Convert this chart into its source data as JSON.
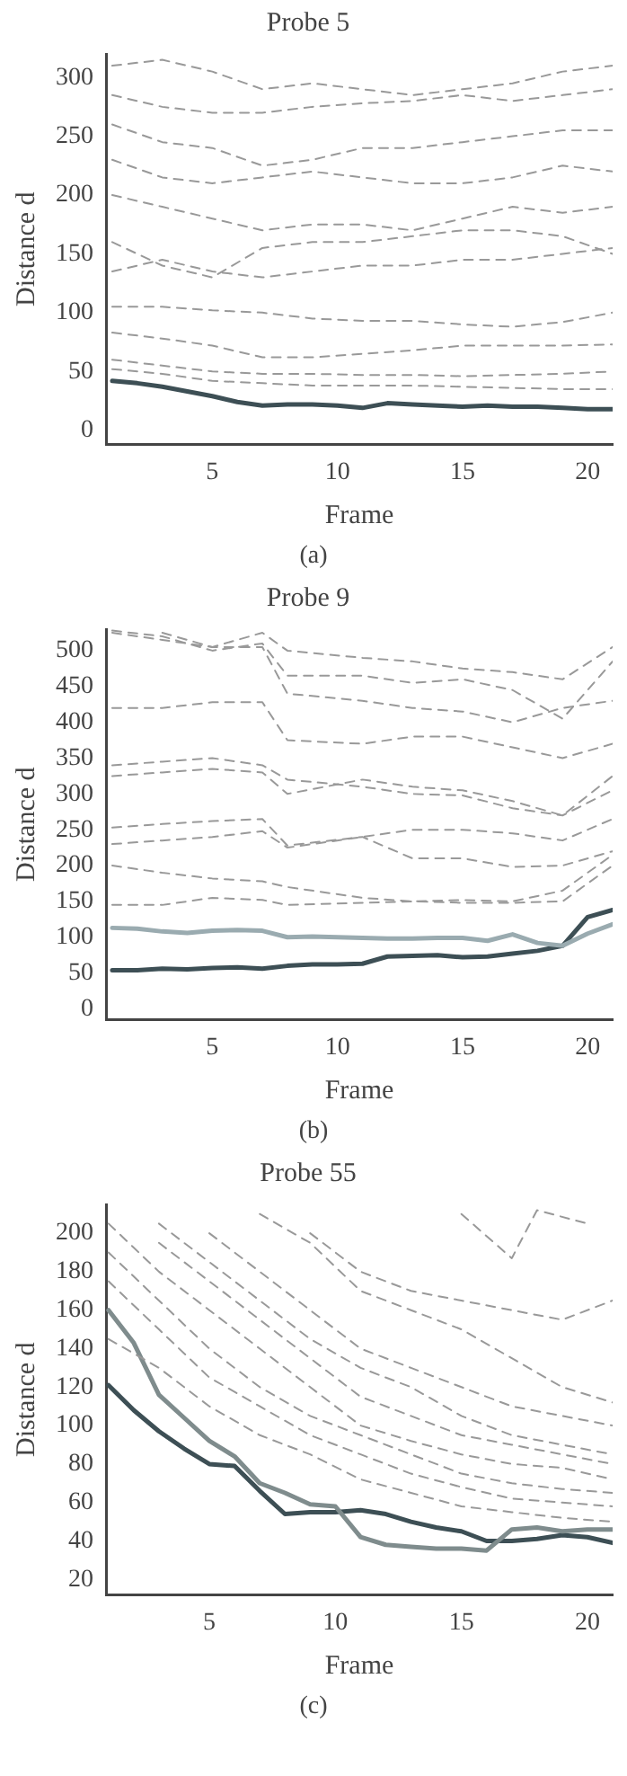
{
  "chart_data": [
    {
      "type": "line",
      "title": "Probe 5",
      "xlabel": "Frame",
      "ylabel": "Distance d",
      "annotations": [
        "(a)"
      ],
      "xlim": [
        0.75,
        21
      ],
      "xticks": [
        5,
        10,
        15,
        20
      ],
      "ylim": [
        -12,
        320
      ],
      "yticks": [
        0,
        50,
        100,
        150,
        200,
        250,
        300
      ],
      "grid": false,
      "legend": false,
      "marker": "none",
      "series": [
        {
          "color": "#999999",
          "line_style": "dashed",
          "x": [
            1,
            3,
            5,
            7,
            9,
            11,
            13,
            15,
            17,
            19,
            21
          ],
          "values": [
            52,
            48,
            42,
            40,
            38,
            38,
            38,
            37,
            36,
            35,
            35
          ]
        },
        {
          "color": "#999999",
          "line_style": "dashed",
          "x": [
            1,
            3,
            5,
            7,
            9,
            11,
            13,
            15,
            17,
            19,
            21
          ],
          "values": [
            60,
            55,
            50,
            48,
            48,
            47,
            47,
            46,
            47,
            48,
            50
          ]
        },
        {
          "color": "#999999",
          "line_style": "dashed",
          "x": [
            1,
            3,
            5,
            7,
            9,
            11,
            13,
            15,
            17,
            19,
            21
          ],
          "values": [
            83,
            78,
            72,
            62,
            62,
            65,
            68,
            72,
            72,
            72,
            73
          ]
        },
        {
          "color": "#999999",
          "line_style": "dashed",
          "x": [
            1,
            3,
            5,
            7,
            9,
            11,
            13,
            15,
            17,
            19,
            21
          ],
          "values": [
            105,
            105,
            102,
            100,
            95,
            93,
            93,
            90,
            88,
            92,
            100
          ]
        },
        {
          "color": "#999999",
          "line_style": "dashed",
          "x": [
            1,
            3,
            5,
            7,
            9,
            11,
            13,
            15,
            17,
            19,
            21
          ],
          "values": [
            135,
            145,
            135,
            130,
            135,
            140,
            140,
            145,
            145,
            150,
            155
          ]
        },
        {
          "color": "#999999",
          "line_style": "dashed",
          "x": [
            1,
            3,
            5,
            7,
            9,
            11,
            13,
            15,
            17,
            19,
            21
          ],
          "values": [
            160,
            140,
            130,
            155,
            160,
            160,
            165,
            170,
            170,
            165,
            150
          ]
        },
        {
          "color": "#999999",
          "line_style": "dashed",
          "x": [
            1,
            3,
            5,
            7,
            9,
            11,
            13,
            15,
            17,
            19,
            21
          ],
          "values": [
            200,
            190,
            180,
            170,
            175,
            175,
            170,
            180,
            190,
            185,
            190
          ]
        },
        {
          "color": "#999999",
          "line_style": "dashed",
          "x": [
            1,
            3,
            5,
            7,
            9,
            11,
            13,
            15,
            17,
            19,
            21
          ],
          "values": [
            230,
            215,
            210,
            215,
            220,
            215,
            210,
            210,
            215,
            225,
            220
          ]
        },
        {
          "color": "#999999",
          "line_style": "dashed",
          "x": [
            1,
            3,
            5,
            7,
            9,
            11,
            13,
            15,
            17,
            19,
            21
          ],
          "values": [
            260,
            245,
            240,
            225,
            230,
            240,
            240,
            245,
            250,
            255,
            255
          ]
        },
        {
          "color": "#999999",
          "line_style": "dashed",
          "x": [
            1,
            3,
            5,
            7,
            9,
            11,
            13,
            15,
            17,
            19,
            21
          ],
          "values": [
            285,
            275,
            270,
            270,
            275,
            278,
            280,
            285,
            280,
            285,
            290
          ]
        },
        {
          "color": "#999999",
          "line_style": "dashed",
          "x": [
            1,
            3,
            5,
            7,
            9,
            11,
            13,
            15,
            17,
            19,
            21
          ],
          "values": [
            310,
            315,
            305,
            290,
            295,
            290,
            285,
            290,
            295,
            305,
            310
          ]
        },
        {
          "color": "#3d4f55",
          "line_style": "solid",
          "x": [
            1,
            2,
            3,
            4,
            5,
            6,
            7,
            8,
            9,
            10,
            11,
            12,
            13,
            14,
            15,
            16,
            17,
            18,
            19,
            20,
            21
          ],
          "values": [
            42,
            40,
            37,
            33,
            29,
            24,
            21,
            22,
            22,
            21,
            19,
            23,
            22,
            21,
            20,
            21,
            20,
            20,
            19,
            18,
            18
          ]
        }
      ]
    },
    {
      "type": "line",
      "title": "Probe 9",
      "xlabel": "Frame",
      "ylabel": "Distance d",
      "annotations": [
        "(b)"
      ],
      "xlim": [
        0.75,
        21
      ],
      "xticks": [
        5,
        10,
        15,
        20
      ],
      "ylim": [
        -15,
        530
      ],
      "yticks": [
        0,
        50,
        100,
        150,
        200,
        250,
        300,
        350,
        400,
        450,
        500
      ],
      "grid": false,
      "legend": false,
      "marker": "none",
      "series": [
        {
          "color": "#999999",
          "line_style": "dashed",
          "x": [
            1,
            3,
            5,
            7,
            8,
            11,
            13,
            15,
            17,
            19,
            21
          ],
          "values": [
            145,
            145,
            155,
            152,
            145,
            148,
            150,
            148,
            148,
            150,
            200
          ]
        },
        {
          "color": "#999999",
          "line_style": "dashed",
          "x": [
            1,
            3,
            5,
            7,
            8,
            11,
            13,
            15,
            17,
            19,
            21
          ],
          "values": [
            200,
            190,
            182,
            178,
            170,
            155,
            150,
            152,
            150,
            165,
            215
          ]
        },
        {
          "color": "#999999",
          "line_style": "dashed",
          "x": [
            1,
            3,
            5,
            7,
            8,
            11,
            13,
            15,
            17,
            19,
            21
          ],
          "values": [
            230,
            235,
            240,
            248,
            225,
            240,
            250,
            250,
            245,
            235,
            265
          ]
        },
        {
          "color": "#999999",
          "line_style": "dashed",
          "x": [
            1,
            3,
            5,
            7,
            8,
            11,
            13,
            15,
            17,
            19,
            21
          ],
          "values": [
            253,
            258,
            262,
            265,
            228,
            240,
            210,
            210,
            198,
            200,
            220
          ]
        },
        {
          "color": "#999999",
          "line_style": "dashed",
          "x": [
            1,
            3,
            5,
            7,
            8,
            11,
            13,
            15,
            17,
            19,
            21
          ],
          "values": [
            325,
            330,
            335,
            330,
            300,
            320,
            310,
            305,
            290,
            270,
            325
          ]
        },
        {
          "color": "#999999",
          "line_style": "dashed",
          "x": [
            1,
            3,
            5,
            7,
            8,
            11,
            13,
            15,
            17,
            19,
            21
          ],
          "values": [
            340,
            345,
            350,
            340,
            320,
            310,
            300,
            298,
            280,
            270,
            305
          ]
        },
        {
          "color": "#999999",
          "line_style": "dashed",
          "x": [
            1,
            3,
            5,
            7,
            8,
            11,
            13,
            15,
            17,
            19,
            21
          ],
          "values": [
            420,
            420,
            428,
            428,
            375,
            370,
            380,
            380,
            365,
            350,
            370
          ]
        },
        {
          "color": "#999999",
          "line_style": "dashed",
          "x": [
            1,
            3,
            5,
            7,
            8,
            11,
            13,
            15,
            17,
            19,
            21
          ],
          "values": [
            525,
            515,
            505,
            505,
            440,
            430,
            420,
            415,
            400,
            420,
            430
          ]
        },
        {
          "color": "#999999",
          "line_style": "dashed",
          "x": [
            1,
            3,
            5,
            7,
            8,
            11,
            13,
            15,
            17,
            19,
            21
          ],
          "values": [
            528,
            520,
            500,
            510,
            465,
            465,
            455,
            460,
            445,
            405,
            485
          ]
        },
        {
          "color": "#999999",
          "line_style": "dashed",
          "x": [
            3,
            5,
            7,
            8,
            11,
            13,
            15,
            17,
            19,
            21
          ],
          "values": [
            525,
            505,
            525,
            500,
            490,
            485,
            475,
            470,
            460,
            505
          ]
        },
        {
          "color": "#9aabb0",
          "line_style": "solid",
          "x": [
            1,
            2,
            3,
            4,
            5,
            6,
            7,
            8,
            9,
            10,
            11,
            12,
            13,
            14,
            15,
            16,
            17,
            18,
            19,
            20,
            21
          ],
          "values": [
            113,
            112,
            108,
            106,
            109,
            110,
            109,
            100,
            101,
            100,
            99,
            98,
            98,
            99,
            99,
            95,
            104,
            92,
            88,
            105,
            118
          ]
        },
        {
          "color": "#3d4f55",
          "line_style": "solid",
          "x": [
            1,
            2,
            3,
            4,
            5,
            6,
            7,
            8,
            9,
            10,
            11,
            12,
            13,
            14,
            15,
            16,
            17,
            18,
            19,
            20,
            21
          ],
          "values": [
            54,
            54,
            56,
            55,
            57,
            58,
            56,
            60,
            62,
            62,
            63,
            73,
            74,
            75,
            72,
            73,
            77,
            81,
            88,
            128,
            138
          ]
        }
      ]
    },
    {
      "type": "line",
      "title": "Probe 55",
      "xlabel": "Frame",
      "ylabel": "Distance d",
      "annotations": [
        "(c)"
      ],
      "xlim": [
        0.9,
        21
      ],
      "xticks": [
        5,
        10,
        15,
        20
      ],
      "ylim": [
        12,
        215
      ],
      "yticks": [
        20,
        40,
        60,
        80,
        100,
        120,
        140,
        160,
        180,
        200
      ],
      "grid": false,
      "legend": false,
      "marker": "none",
      "series": [
        {
          "color": "#999999",
          "line_style": "dashed",
          "x": [
            1,
            3,
            5,
            7,
            9,
            11,
            13,
            15,
            17,
            19,
            21
          ],
          "values": [
            145,
            130,
            110,
            95,
            85,
            72,
            65,
            58,
            55,
            52,
            50
          ]
        },
        {
          "color": "#999999",
          "line_style": "dashed",
          "x": [
            1,
            3,
            5,
            7,
            9,
            11,
            13,
            15,
            17,
            19,
            21
          ],
          "values": [
            175,
            150,
            125,
            110,
            95,
            85,
            75,
            68,
            62,
            60,
            58
          ]
        },
        {
          "color": "#999999",
          "line_style": "dashed",
          "x": [
            1,
            3,
            5,
            7,
            9,
            11,
            13,
            15,
            17,
            19,
            21
          ],
          "values": [
            190,
            165,
            140,
            120,
            105,
            95,
            85,
            75,
            70,
            67,
            65
          ]
        },
        {
          "color": "#999999",
          "line_style": "dashed",
          "x": [
            1,
            3,
            5,
            7,
            9,
            11,
            13,
            15,
            17,
            19,
            21
          ],
          "values": [
            205,
            180,
            160,
            140,
            120,
            100,
            92,
            85,
            80,
            78,
            72
          ]
        },
        {
          "color": "#999999",
          "line_style": "dashed",
          "x": [
            3,
            5,
            7,
            9,
            11,
            13,
            15,
            17,
            19,
            21
          ],
          "values": [
            195,
            175,
            155,
            135,
            115,
            105,
            95,
            90,
            85,
            80
          ]
        },
        {
          "color": "#999999",
          "line_style": "dashed",
          "x": [
            3,
            5,
            7,
            9,
            11,
            13,
            15,
            17,
            19,
            21
          ],
          "values": [
            205,
            185,
            165,
            145,
            130,
            120,
            105,
            95,
            90,
            85
          ]
        },
        {
          "color": "#999999",
          "line_style": "dashed",
          "x": [
            5,
            7,
            9,
            11,
            13,
            15,
            17,
            19,
            21
          ],
          "values": [
            200,
            180,
            160,
            140,
            130,
            120,
            110,
            105,
            100
          ]
        },
        {
          "color": "#999999",
          "line_style": "dashed",
          "x": [
            7,
            9,
            11,
            13,
            15,
            17,
            19,
            21
          ],
          "values": [
            210,
            195,
            170,
            160,
            150,
            135,
            120,
            112
          ]
        },
        {
          "color": "#999999",
          "line_style": "dashed",
          "x": [
            9,
            11,
            13,
            15,
            17,
            19,
            21
          ],
          "values": [
            200,
            180,
            170,
            165,
            160,
            155,
            165
          ]
        },
        {
          "color": "#999999",
          "line_style": "dashed",
          "x": [
            15,
            17,
            18,
            20
          ],
          "values": [
            210,
            187,
            212,
            205
          ]
        },
        {
          "color": "#7f8c8d",
          "line_style": "solid",
          "x": [
            1,
            2,
            3,
            4,
            5,
            6,
            7,
            8,
            9,
            10,
            11,
            12,
            13,
            14,
            15,
            16,
            17,
            18,
            19,
            20,
            21
          ],
          "values": [
            160,
            143,
            116,
            104,
            92,
            84,
            70,
            65,
            59,
            58,
            42,
            38,
            37,
            36,
            36,
            35,
            46,
            47,
            45,
            46,
            46
          ]
        },
        {
          "color": "#3d4f55",
          "line_style": "solid",
          "x": [
            1,
            2,
            3,
            4,
            5,
            6,
            7,
            8,
            9,
            10,
            11,
            12,
            13,
            14,
            15,
            16,
            17,
            18,
            19,
            20,
            21
          ],
          "values": [
            121,
            108,
            97,
            88,
            80,
            79,
            66,
            54,
            55,
            55,
            56,
            54,
            50,
            47,
            45,
            40,
            40,
            41,
            43,
            42,
            39
          ]
        }
      ]
    }
  ]
}
